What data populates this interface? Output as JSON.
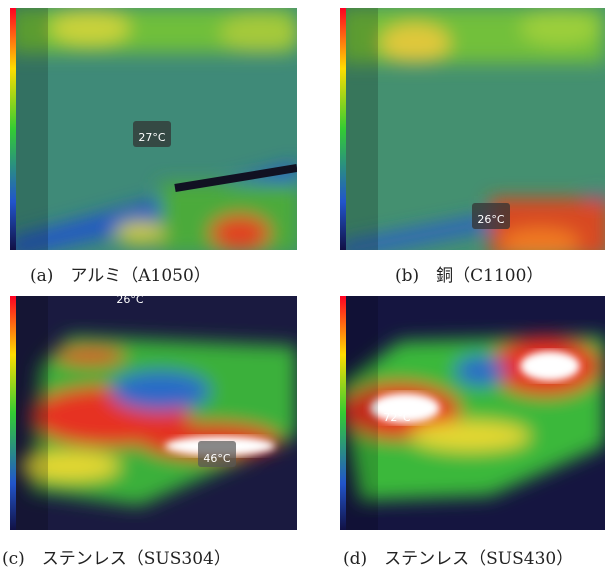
{
  "panels": [
    {
      "caption": "(a)　アルミ（A1050）",
      "readouts": [
        "27°C"
      ]
    },
    {
      "caption": "(b)　銅（C1100）",
      "readouts": [
        "26°C"
      ]
    },
    {
      "caption": "(c)　ステンレス（SUS304）",
      "readouts": [
        "26°C",
        "46°C"
      ]
    },
    {
      "caption": "(d)　ステンレス（SUS430）",
      "readouts": [
        "72°C"
      ]
    }
  ]
}
